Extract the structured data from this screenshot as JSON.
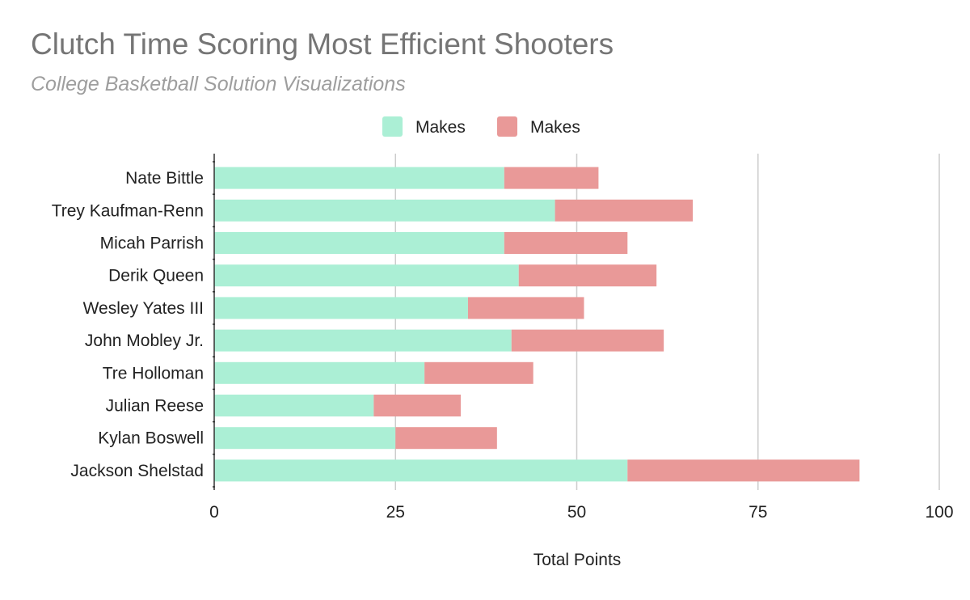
{
  "title": "Clutch Time Scoring Most Efficient Shooters",
  "subtitle": "College Basketball Solution Visualizations",
  "chart_data": {
    "type": "bar",
    "orientation": "horizontal",
    "stacked": true,
    "title": "Clutch Time Scoring Most Efficient Shooters",
    "subtitle": "College Basketball Solution Visualizations",
    "xlabel": "Total Points",
    "ylabel": "",
    "xlim": [
      0,
      100
    ],
    "x_ticks": [
      0,
      25,
      50,
      75,
      100
    ],
    "grid": "vertical",
    "legend_position": "top",
    "categories": [
      "Nate Bittle",
      "Trey Kaufman-Renn",
      "Micah Parrish",
      "Derik Queen",
      "Wesley Yates III",
      "John Mobley Jr.",
      "Tre Holloman",
      "Julian Reese",
      "Kylan Boswell",
      "Jackson Shelstad"
    ],
    "series": [
      {
        "name": "Makes",
        "color": "#abefd5",
        "values": [
          40,
          47,
          40,
          42,
          35,
          41,
          29,
          22,
          25,
          57
        ]
      },
      {
        "name": "Makes",
        "color": "#e99998",
        "values": [
          13,
          19,
          17,
          19,
          16,
          21,
          15,
          12,
          14,
          32
        ]
      }
    ]
  }
}
